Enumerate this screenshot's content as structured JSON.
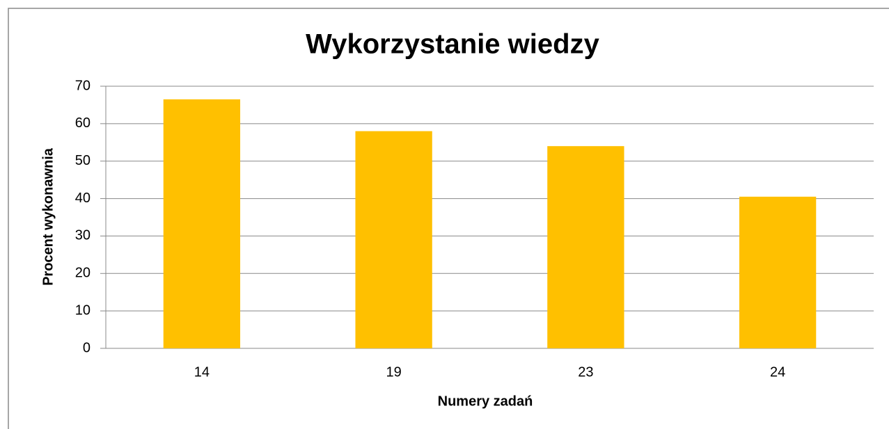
{
  "chart_data": {
    "type": "bar",
    "title": "Wykorzystanie wiedzy",
    "x_label": "Numery zadań",
    "y_label": "Procent wykonawnia",
    "categories": [
      "14",
      "19",
      "23",
      "24"
    ],
    "values": [
      66.5,
      58,
      54,
      40.5
    ],
    "color": "#ffc000",
    "ylim": [
      0,
      70
    ],
    "yticks": [
      0,
      10,
      20,
      30,
      40,
      50,
      60,
      70
    ],
    "grid": true
  }
}
